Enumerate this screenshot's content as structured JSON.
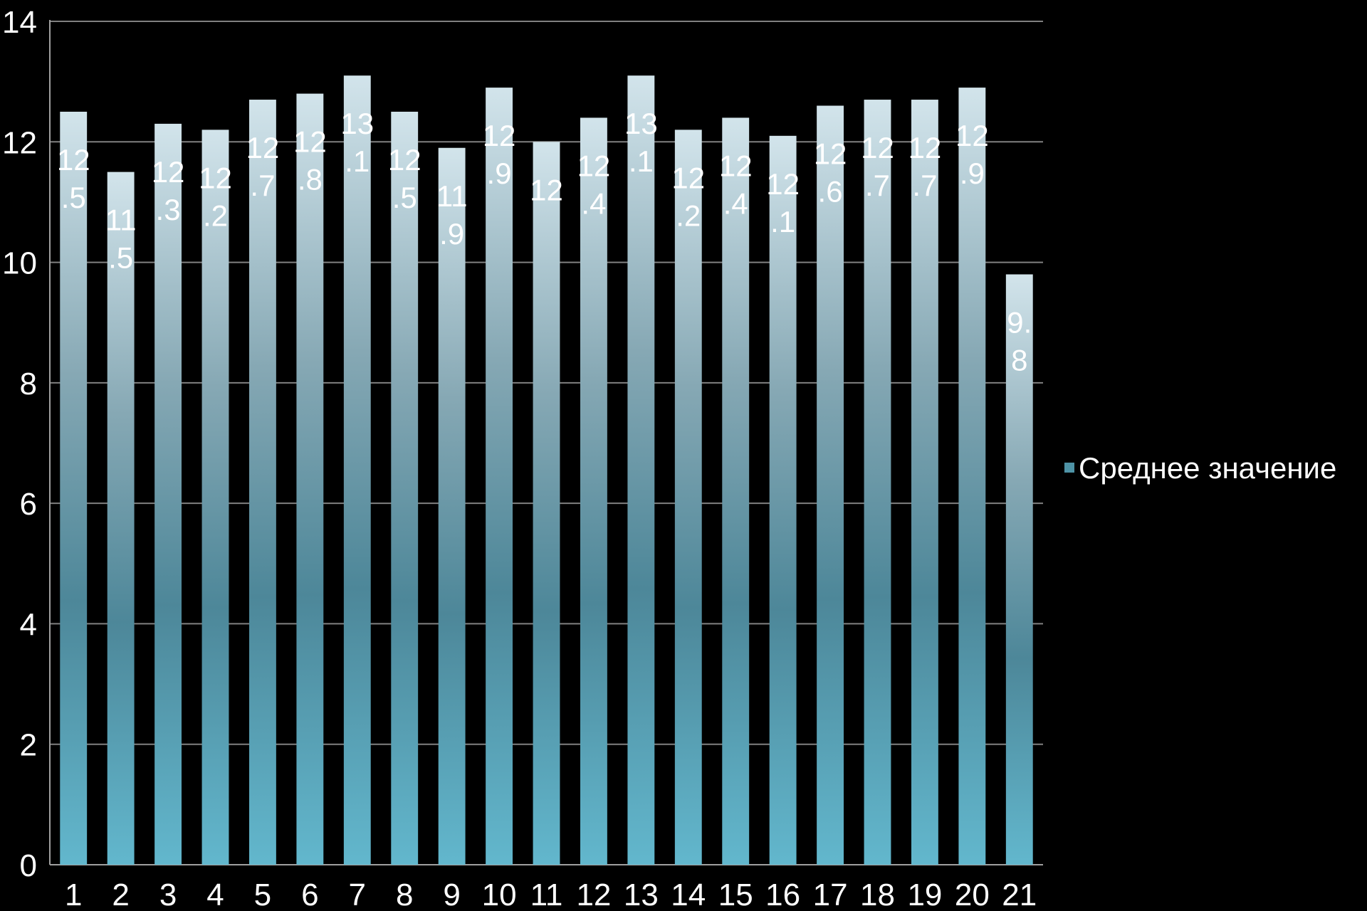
{
  "chart_data": {
    "type": "bar",
    "categories": [
      "1",
      "2",
      "3",
      "4",
      "5",
      "6",
      "7",
      "8",
      "9",
      "10",
      "11",
      "12",
      "13",
      "14",
      "15",
      "16",
      "17",
      "18",
      "19",
      "20",
      "21"
    ],
    "series": [
      {
        "name": "Среднее значение",
        "values": [
          12.5,
          11.5,
          12.3,
          12.2,
          12.7,
          12.8,
          13.1,
          12.5,
          11.9,
          12.9,
          12,
          12.4,
          13.1,
          12.2,
          12.4,
          12.1,
          12.6,
          12.7,
          12.7,
          12.9,
          9.8
        ],
        "color": "#4e93a6"
      }
    ],
    "data_labels": [
      [
        "12",
        ".5"
      ],
      [
        "11",
        ".5"
      ],
      [
        "12",
        ".3"
      ],
      [
        "12",
        ".2"
      ],
      [
        "12",
        ".7"
      ],
      [
        "12",
        ".8"
      ],
      [
        "13",
        ".1"
      ],
      [
        "12",
        ".5"
      ],
      [
        "11",
        ".9"
      ],
      [
        "12",
        ".9"
      ],
      [
        "12"
      ],
      [
        "12",
        ".4"
      ],
      [
        "13",
        ".1"
      ],
      [
        "12",
        ".2"
      ],
      [
        "12",
        ".4"
      ],
      [
        "12",
        ".1"
      ],
      [
        "12",
        ".6"
      ],
      [
        "12",
        ".7"
      ],
      [
        "12",
        ".7"
      ],
      [
        "12",
        ".9"
      ],
      [
        "9.",
        "8"
      ]
    ],
    "y_ticks": [
      "0",
      "2",
      "4",
      "6",
      "8",
      "10",
      "12",
      "14"
    ],
    "ylim": [
      0,
      14
    ],
    "grid": true,
    "legend": "right",
    "title": "",
    "xlabel": "",
    "ylabel": ""
  },
  "colors": {
    "background": "#000000",
    "grid": "#808080",
    "axis": "#a0a0a0",
    "bar_top": "#c9dde5",
    "bar_mid": "#5b8b9c",
    "bar_bottom": "#5aaec4",
    "text": "#ffffff"
  }
}
